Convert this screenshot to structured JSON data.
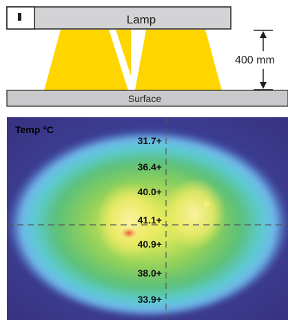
{
  "lamp": {
    "label": "Lamp",
    "switch_icon": "power-switch-icon"
  },
  "surface": {
    "label": "Surface"
  },
  "distance": {
    "label": "400 mm"
  },
  "thermal_map": {
    "title": "Temp °C",
    "readings": [
      "31.7+",
      "36.4+",
      "40.0+",
      "41.1+",
      "40.9+",
      "38.0+",
      "33.9+"
    ]
  },
  "colors": {
    "lamp_body": "#d3d3d5",
    "beam": "#ffd500",
    "surface": "#c9c9cb",
    "outline": "#231f20",
    "crosshair": "#555555"
  }
}
